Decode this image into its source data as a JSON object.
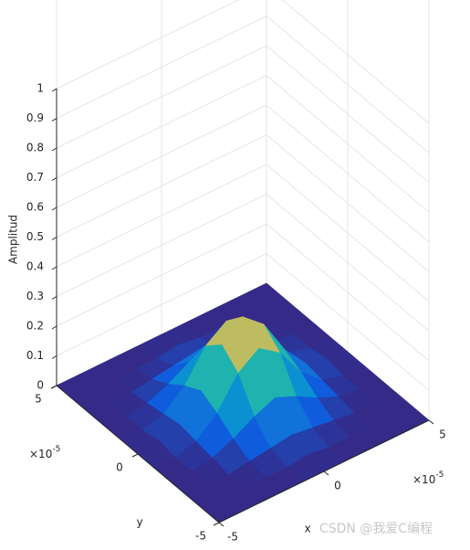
{
  "chart_data": {
    "type": "surface",
    "xlabel": "x",
    "ylabel": "y",
    "zlabel": "Amplitud",
    "x": [
      -5e-05,
      -4e-05,
      -3e-05,
      -2e-05,
      -1e-05,
      0,
      1e-05,
      2e-05,
      3e-05,
      4e-05,
      5e-05
    ],
    "y": [
      -5e-05,
      -4e-05,
      -3e-05,
      -2e-05,
      -1e-05,
      0,
      1e-05,
      2e-05,
      3e-05,
      4e-05,
      5e-05
    ],
    "z": [
      [
        0,
        0,
        0,
        0,
        0,
        0,
        0,
        0,
        0,
        0,
        0
      ],
      [
        0,
        0,
        0,
        0,
        0,
        0.01,
        0,
        0,
        0,
        0,
        0
      ],
      [
        0,
        0,
        0,
        0.01,
        0.02,
        0.03,
        0.02,
        0.01,
        0,
        0,
        0
      ],
      [
        0,
        0,
        0.01,
        0.04,
        0.08,
        0.11,
        0.08,
        0.04,
        0.01,
        0,
        0
      ],
      [
        0,
        0,
        0.02,
        0.08,
        0.18,
        0.23,
        0.18,
        0.08,
        0.02,
        0,
        0
      ],
      [
        0,
        0.01,
        0.03,
        0.11,
        0.23,
        0.29,
        0.23,
        0.11,
        0.03,
        0.01,
        0
      ],
      [
        0,
        0,
        0.02,
        0.08,
        0.18,
        0.23,
        0.18,
        0.08,
        0.02,
        0,
        0
      ],
      [
        0,
        0,
        0.01,
        0.04,
        0.08,
        0.11,
        0.08,
        0.04,
        0.01,
        0,
        0
      ],
      [
        0,
        0,
        0,
        0.01,
        0.02,
        0.03,
        0.02,
        0.01,
        0,
        0,
        0
      ],
      [
        0,
        0,
        0,
        0,
        0,
        0.01,
        0,
        0,
        0,
        0,
        0
      ],
      [
        0,
        0,
        0,
        0,
        0,
        0,
        0,
        0,
        0,
        0,
        0
      ]
    ],
    "xlim": [
      -5e-05,
      5e-05
    ],
    "ylim": [
      -5e-05,
      5e-05
    ],
    "zlim": [
      0,
      1
    ],
    "xticks": [
      {
        "value": -5e-05,
        "label": "-5"
      },
      {
        "value": 0,
        "label": "0"
      },
      {
        "value": 5e-05,
        "label": "5"
      }
    ],
    "yticks": [
      {
        "value": -5e-05,
        "label": "-5"
      },
      {
        "value": 0,
        "label": "0"
      },
      {
        "value": 5e-05,
        "label": "5"
      }
    ],
    "zticks": [
      0,
      0.1,
      0.2,
      0.3,
      0.4,
      0.5,
      0.6,
      0.7,
      0.8,
      0.9,
      1
    ],
    "x_scale": "×10",
    "x_scale_exponent": "-5",
    "y_scale": "×10",
    "y_scale_exponent": "-5",
    "colormap": "parula",
    "grid": true,
    "watermark": "CSDN @我爱C编程"
  }
}
